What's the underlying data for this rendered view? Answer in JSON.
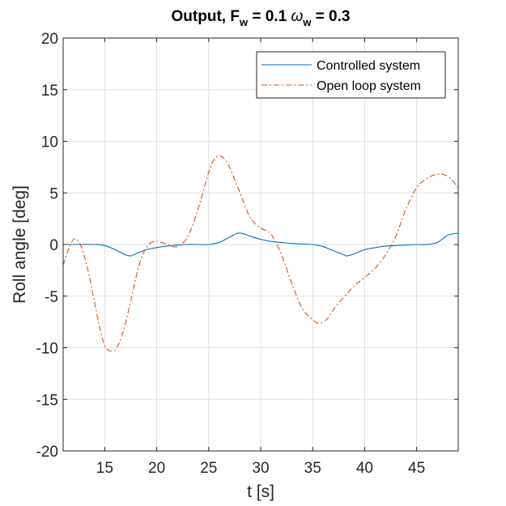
{
  "chart_data": {
    "type": "line",
    "title": {
      "main": "Output, F",
      "sub1": "w",
      "mid": " = 0.1 ",
      "omega": "ω",
      "sub2": "w",
      "end": " = 0.3"
    },
    "xlabel": "t [s]",
    "ylabel": "Roll angle [deg]",
    "xlim": [
      11,
      49
    ],
    "ylim": [
      -20,
      20
    ],
    "xticks": [
      15,
      20,
      25,
      30,
      35,
      40,
      45
    ],
    "yticks": [
      -20,
      -15,
      -10,
      -5,
      0,
      5,
      10,
      15,
      20
    ],
    "grid": true,
    "legend_position": "top-right",
    "series": [
      {
        "name": "Controlled system",
        "color": "#0072BD",
        "style": "solid",
        "x": [
          11,
          12,
          13,
          14,
          15,
          16,
          17,
          17.5,
          18,
          19,
          20,
          21,
          22,
          23,
          24,
          25,
          26,
          27,
          27.8,
          28.5,
          29,
          30,
          31,
          32,
          33,
          34,
          35,
          36,
          37,
          38,
          38.3,
          39,
          40,
          41,
          42,
          43,
          44,
          45,
          46,
          47,
          48,
          49
        ],
        "y": [
          0,
          0,
          0,
          0,
          -0.1,
          -0.5,
          -1.0,
          -1.1,
          -0.9,
          -0.5,
          -0.3,
          -0.15,
          -0.05,
          0,
          0,
          0,
          0.2,
          0.7,
          1.1,
          1.0,
          0.8,
          0.5,
          0.3,
          0.2,
          0.1,
          0.05,
          0,
          -0.2,
          -0.6,
          -1.0,
          -1.1,
          -0.9,
          -0.5,
          -0.3,
          -0.15,
          -0.1,
          -0.05,
          0,
          0,
          0.2,
          0.9,
          1.1
        ]
      },
      {
        "name": "Open loop system",
        "color": "#D95319",
        "style": "dashdot",
        "x": [
          11,
          11.5,
          12,
          12.5,
          13,
          13.5,
          14,
          14.5,
          15,
          15.5,
          16,
          16.5,
          17,
          17.5,
          18,
          18.5,
          19,
          19.5,
          20,
          20.5,
          21,
          22,
          23,
          24,
          25,
          25.5,
          26,
          26.5,
          27,
          28,
          29,
          30,
          31,
          32,
          33,
          34,
          35,
          35.5,
          36,
          36.5,
          37,
          38,
          39,
          40,
          41,
          42,
          43,
          44,
          45,
          46,
          47,
          48,
          49
        ],
        "y": [
          -2.0,
          -0.5,
          0.5,
          0.3,
          -1.0,
          -3.0,
          -5.5,
          -8.0,
          -9.8,
          -10.3,
          -10.2,
          -9.3,
          -7.6,
          -5.5,
          -3.2,
          -1.4,
          -0.3,
          0.2,
          0.3,
          0.2,
          0.0,
          -0.2,
          0.8,
          3.5,
          7.0,
          8.2,
          8.6,
          8.3,
          7.5,
          5.0,
          2.6,
          1.6,
          1.0,
          -1.0,
          -3.8,
          -6.2,
          -7.3,
          -7.6,
          -7.5,
          -7.1,
          -6.3,
          -5.1,
          -4.0,
          -3.2,
          -2.3,
          -1.0,
          0.8,
          3.5,
          5.5,
          6.4,
          6.8,
          6.6,
          5.5
        ]
      }
    ]
  }
}
